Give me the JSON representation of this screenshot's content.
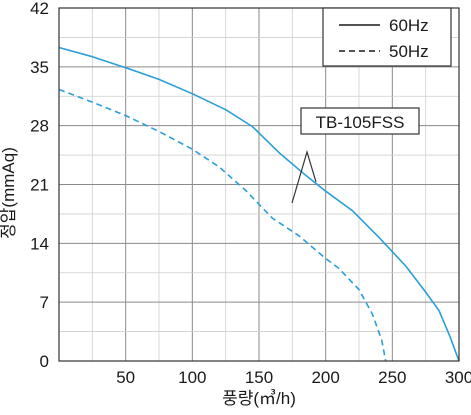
{
  "chart_data": {
    "type": "line",
    "xlabel": "풍량(㎥/h)",
    "ylabel": "정압(mmAq)",
    "xlim": [
      0,
      300
    ],
    "ylim": [
      0,
      42
    ],
    "x_ticks": [
      50,
      100,
      150,
      200,
      250,
      300
    ],
    "x_tick_labels": [
      "50",
      "100",
      "150",
      "200",
      "250",
      "300"
    ],
    "y_ticks": [
      0,
      7,
      14,
      21,
      28,
      35,
      42
    ],
    "y_tick_labels": [
      "0",
      "7",
      "14",
      "21",
      "28",
      "35",
      "42"
    ],
    "grid": true,
    "legend_position": "top-right",
    "series": [
      {
        "name": "60Hz",
        "style": "solid",
        "color": "#2a9fd8",
        "points": [
          [
            0,
            37.3
          ],
          [
            25,
            36.2
          ],
          [
            50,
            34.9
          ],
          [
            75,
            33.5
          ],
          [
            100,
            31.8
          ],
          [
            125,
            29.9
          ],
          [
            145,
            27.9
          ],
          [
            165,
            24.8
          ],
          [
            185,
            22.1
          ],
          [
            200,
            20.2
          ],
          [
            220,
            17.9
          ],
          [
            240,
            14.7
          ],
          [
            260,
            11.3
          ],
          [
            275,
            8.2
          ],
          [
            285,
            6.0
          ],
          [
            293,
            3.0
          ],
          [
            300,
            0
          ]
        ]
      },
      {
        "name": "50Hz",
        "style": "dashed",
        "color": "#2a9fd8",
        "points": [
          [
            0,
            32.3
          ],
          [
            25,
            30.8
          ],
          [
            50,
            29.2
          ],
          [
            75,
            27.3
          ],
          [
            100,
            25.2
          ],
          [
            120,
            23.1
          ],
          [
            140,
            20.3
          ],
          [
            160,
            17.0
          ],
          [
            180,
            14.9
          ],
          [
            200,
            12.2
          ],
          [
            210,
            11.0
          ],
          [
            225,
            8.5
          ],
          [
            235,
            5.6
          ],
          [
            242,
            2.5
          ],
          [
            245,
            0
          ]
        ]
      }
    ],
    "annotations": [
      {
        "text": "TB-105FSS"
      }
    ]
  }
}
